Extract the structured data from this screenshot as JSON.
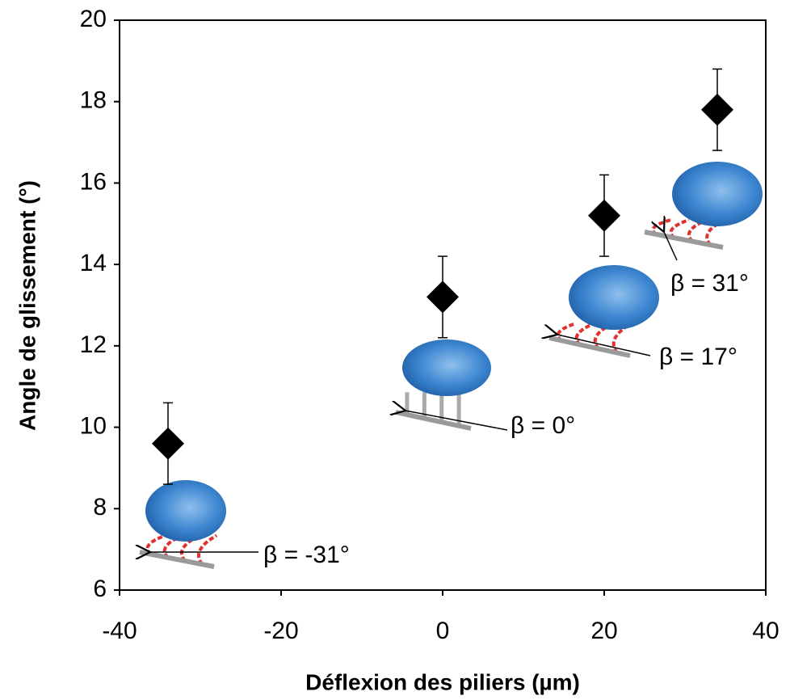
{
  "chart_data": {
    "type": "scatter",
    "x_label": "Déflexion des piliers (µm)",
    "y_label": "Angle de glissement (°)",
    "series": [
      {
        "color": "#000000",
        "x": [
          -34,
          0,
          20,
          34
        ],
        "values": [
          9.6,
          13.2,
          15.2,
          17.8
        ],
        "errors": [
          1,
          1,
          1,
          1
        ]
      }
    ],
    "xlim": [
      -40,
      40
    ],
    "xticks": [
      -40,
      -20,
      0,
      20,
      40
    ],
    "ylim": [
      6,
      20
    ],
    "yticks": [
      6,
      8,
      10,
      12,
      14,
      16,
      18,
      20
    ],
    "annotations": [
      "β = -31°",
      "β = 0°",
      "β = 17°",
      "β = 31°"
    ]
  }
}
